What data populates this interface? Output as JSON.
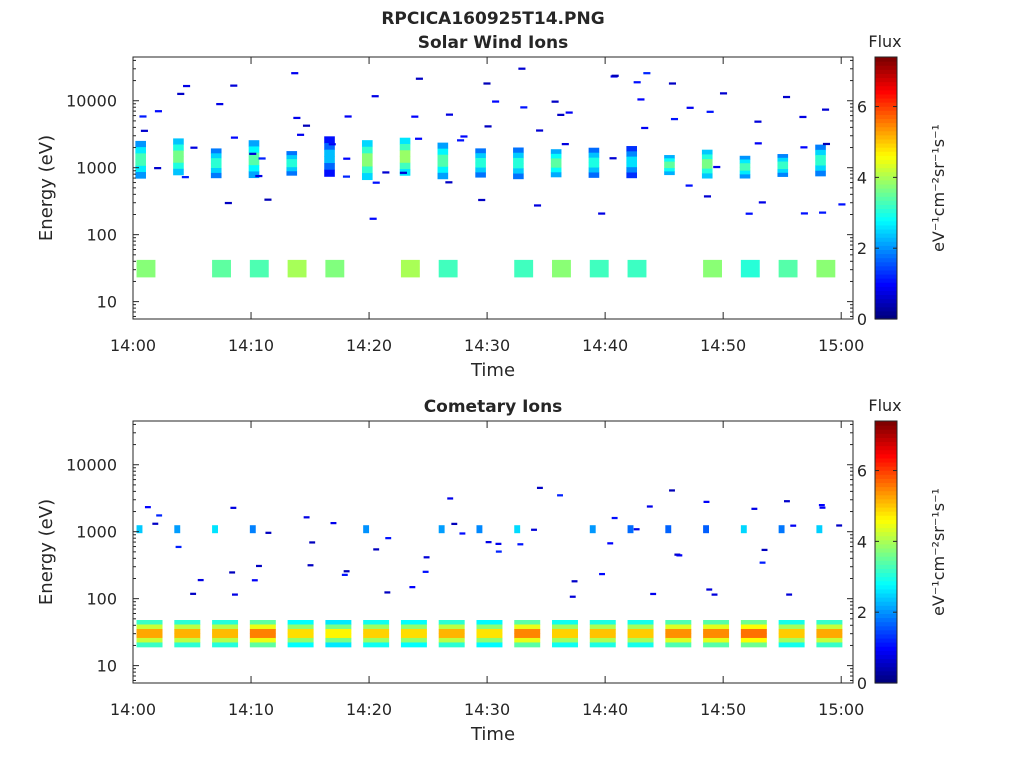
{
  "figure_title": "RPCICA160925T14.PNG",
  "chart_data": [
    {
      "type": "heatmap",
      "title": "Solar Wind Ions",
      "xlabel": "Time",
      "ylabel": "Energy (eV)",
      "x_ticks": [
        "14:00",
        "14:10",
        "14:20",
        "14:30",
        "14:40",
        "14:50",
        "15:00"
      ],
      "x_range_minutes": [
        0,
        61
      ],
      "y_scale": "log",
      "y_ticks": [
        {
          "value": 10,
          "label": "10"
        },
        {
          "value": 100,
          "label": "100"
        },
        {
          "value": 1000,
          "label": "1000"
        },
        {
          "value": 10000,
          "label": "10000"
        }
      ],
      "ylim": [
        5.5,
        45000
      ],
      "colorbar": {
        "title": "Flux",
        "label": "eV⁻¹cm⁻²sr⁻¹s⁻¹",
        "ticks": [
          "0",
          "2",
          "4",
          "6"
        ],
        "range": [
          0,
          7.4
        ],
        "colormap": "jet"
      },
      "features": [
        {
          "name": "solar wind beam",
          "energy_eV": [
            650,
            3000
          ],
          "flux_peak": 4.6,
          "pulse_period_min": 3.2
        },
        {
          "name": "low-energy band",
          "energy_eV": [
            22,
            48
          ],
          "flux_peak": 4.2,
          "pulse_period_min": 3.2
        },
        {
          "name": "scattered counts",
          "energy_eV": [
            100,
            40000
          ],
          "flux_peak": 1.2
        }
      ]
    },
    {
      "type": "heatmap",
      "title": "Cometary Ions",
      "xlabel": "Time",
      "ylabel": "Energy (eV)",
      "x_ticks": [
        "14:00",
        "14:10",
        "14:20",
        "14:30",
        "14:40",
        "14:50",
        "15:00"
      ],
      "x_range_minutes": [
        0,
        61
      ],
      "y_scale": "log",
      "y_ticks": [
        {
          "value": 10,
          "label": "10"
        },
        {
          "value": 100,
          "label": "100"
        },
        {
          "value": 1000,
          "label": "1000"
        },
        {
          "value": 10000,
          "label": "10000"
        }
      ],
      "ylim": [
        5.5,
        45000
      ],
      "colorbar": {
        "title": "Flux",
        "label": "eV⁻¹cm⁻²sr⁻¹s⁻¹",
        "ticks": [
          "0",
          "2",
          "4",
          "6"
        ],
        "range": [
          0,
          7.4
        ],
        "colormap": "jet"
      },
      "features": [
        {
          "name": "cometary ion band",
          "energy_eV": [
            18,
            50
          ],
          "flux_peak": 6.1,
          "pulse_period_min": 3.2
        },
        {
          "name": "1 keV line",
          "energy_eV": [
            900,
            1300
          ],
          "flux_peak": 2.6,
          "pulse_period_min": 3.2
        },
        {
          "name": "scattered counts",
          "energy_eV": [
            100,
            10000
          ],
          "flux_peak": 1.2
        }
      ]
    }
  ]
}
